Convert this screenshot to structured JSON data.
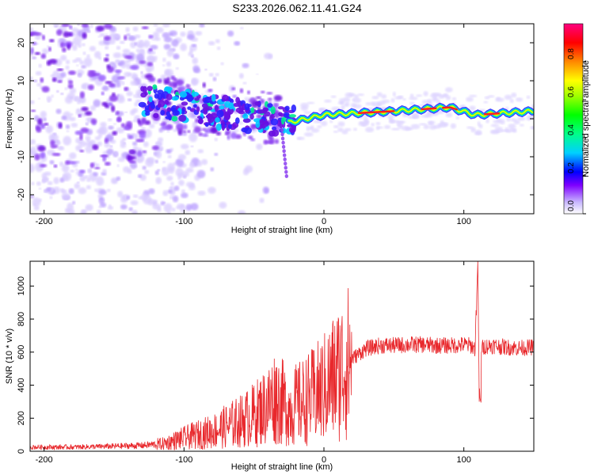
{
  "title": "S233.2026.062.11.41.G24",
  "chart_data": [
    {
      "type": "heatmap",
      "xlabel": "Height of straight line (km)",
      "ylabel": "Frequency (Hz)",
      "xlim": [
        -210,
        150
      ],
      "ylim": [
        -25,
        25
      ],
      "xticks": [
        -200,
        -100,
        0,
        100
      ],
      "yticks": [
        -20,
        -10,
        0,
        10,
        20
      ],
      "colorbar": {
        "label": "Normalized spectral amplitude",
        "range": [
          0,
          1
        ],
        "ticks": [
          "0.0",
          "0.2",
          "0.4",
          "0.6",
          "0.8"
        ]
      },
      "ridge_frequency_hz": [
        {
          "x": -140,
          "y": 6
        },
        {
          "x": -110,
          "y": 4
        },
        {
          "x": -80,
          "y": 2
        },
        {
          "x": -40,
          "y": 0
        },
        {
          "x": -25,
          "y": -1
        },
        {
          "x": 0,
          "y": 1
        },
        {
          "x": 50,
          "y": 2
        },
        {
          "x": 90,
          "y": 3
        },
        {
          "x": 108,
          "y": 1
        },
        {
          "x": 150,
          "y": 2
        }
      ]
    },
    {
      "type": "line",
      "xlabel": "Height of straight line (km)",
      "ylabel": "SNR (10 * v/v)",
      "xlim": [
        -210,
        150
      ],
      "ylim": [
        0,
        1150
      ],
      "xticks": [
        -200,
        -100,
        0,
        100
      ],
      "yticks": [
        0,
        200,
        400,
        600,
        800,
        1000
      ],
      "series": [
        {
          "name": "SNR",
          "color": "#e8282c",
          "x": [
            -210,
            -180,
            -150,
            -130,
            -115,
            -100,
            -90,
            -80,
            -70,
            -60,
            -50,
            -40,
            -35,
            -30,
            -25,
            -20,
            -10,
            0,
            10,
            20,
            30,
            40,
            50,
            60,
            70,
            80,
            90,
            100,
            105,
            108,
            110,
            111,
            112,
            115,
            120,
            130,
            140,
            150
          ],
          "y": [
            25,
            25,
            30,
            35,
            45,
            80,
            100,
            120,
            150,
            180,
            220,
            280,
            330,
            300,
            250,
            280,
            320,
            380,
            470,
            560,
            620,
            640,
            640,
            645,
            645,
            640,
            640,
            645,
            640,
            620,
            1150,
            300,
            620,
            635,
            640,
            630,
            625,
            630
          ]
        }
      ]
    }
  ]
}
